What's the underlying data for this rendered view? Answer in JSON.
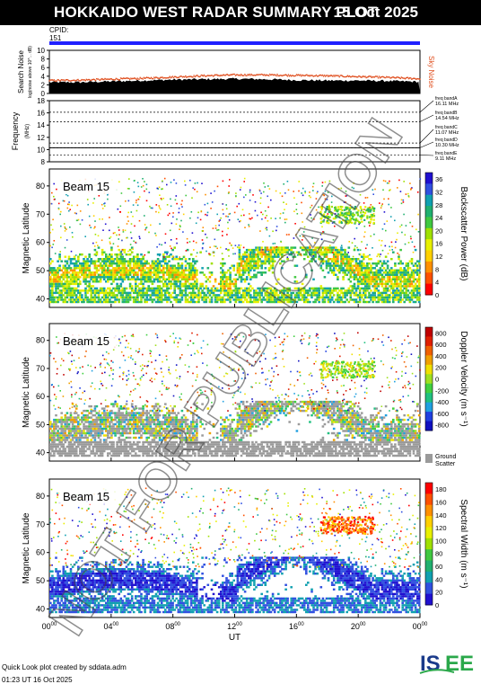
{
  "header": {
    "title": "HOKKAIDO WEST RADAR SUMMARY PLOT",
    "date": "15 Oct 2025"
  },
  "cpid": {
    "label": "CPID:",
    "value": "151"
  },
  "watermark": "NOT FOR PUBLICATION",
  "footer": {
    "line1": "Quick Look plot created by sddata.adm",
    "line2": "01:23 UT 16 Oct 2025"
  },
  "logo": {
    "text": "ISEE",
    "icon": "isee-logo",
    "colors": [
      "#1a3a8a",
      "#2aa84a"
    ]
  },
  "chart_data": [
    {
      "type": "area",
      "name": "noise",
      "ylabel": "Search Noise",
      "ylabel_sub": "log(noise above 10^... dB)",
      "ylim": [
        0,
        10
      ],
      "yticks": [
        0,
        2,
        4,
        6,
        8,
        10
      ],
      "right_label": "Sky Noise",
      "x_hours": [
        0,
        2,
        4,
        6,
        8,
        10,
        12,
        14,
        16,
        18,
        20,
        22,
        24
      ],
      "sky_noise": [
        3.0,
        3.1,
        3.3,
        3.5,
        3.8,
        4.1,
        4.3,
        4.3,
        4.2,
        4.1,
        3.9,
        3.7,
        3.4
      ],
      "search_noise": [
        2.6,
        2.6,
        2.8,
        3.0,
        3.2,
        3.3,
        3.4,
        3.3,
        3.1,
        3.0,
        3.0,
        2.9,
        2.7
      ]
    },
    {
      "type": "line",
      "name": "frequency",
      "ylabel": "Frequency",
      "yunit": "(MHz)",
      "ylim": [
        8,
        18
      ],
      "yticks": [
        8,
        10,
        12,
        14,
        16,
        18
      ],
      "bands": [
        16.11,
        14.54,
        11.07,
        10.3,
        9.11
      ],
      "band_labels": [
        [
          "freq bandA",
          "16.11 MHz"
        ],
        [
          "freq bandB",
          "14.54 MHz"
        ],
        [
          "freq bandC",
          "11.07 MHz"
        ],
        [
          "freq bandD",
          "10.30 MHz"
        ],
        [
          "freq bandE",
          "9.11 MHz"
        ]
      ]
    },
    {
      "type": "heatmap",
      "name": "power",
      "beam": "Beam 15",
      "ylabel": "Magnetic Latitude",
      "ylim": [
        37,
        86
      ],
      "yticks": [
        40,
        50,
        60,
        70,
        80
      ],
      "colorbar_label": "Backscatter Power (dB)",
      "colorbar_ticks": [
        0,
        4,
        8,
        12,
        16,
        20,
        24,
        28,
        32,
        36
      ],
      "colorbar_range": [
        0,
        38
      ]
    },
    {
      "type": "heatmap",
      "name": "velocity",
      "beam": "Beam 15",
      "ylabel": "Magnetic Latitude",
      "ylim": [
        37,
        86
      ],
      "yticks": [
        40,
        50,
        60,
        70,
        80
      ],
      "colorbar_label": "Doppler Velocity (m s⁻¹)",
      "colorbar_ticks": [
        800,
        600,
        400,
        200,
        0,
        -200,
        -400,
        -600,
        -800
      ],
      "colorbar_range": [
        -900,
        900
      ],
      "ground_scatter_label": [
        "Ground",
        "Scatter"
      ]
    },
    {
      "type": "heatmap",
      "name": "width",
      "beam": "Beam 15",
      "ylabel": "Magnetic Latitude",
      "ylim": [
        37,
        86
      ],
      "yticks": [
        40,
        50,
        60,
        70,
        80
      ],
      "colorbar_label": "Spectral Width (m s⁻¹)",
      "colorbar_ticks": [
        0,
        20,
        40,
        60,
        80,
        100,
        120,
        140,
        160,
        180
      ],
      "colorbar_range": [
        0,
        190
      ],
      "xlabel": "UT",
      "xticks": [
        "00",
        "04",
        "08",
        "12",
        "16",
        "20",
        "00"
      ],
      "xticks_sup": "00",
      "xlim": [
        0,
        24
      ]
    }
  ]
}
